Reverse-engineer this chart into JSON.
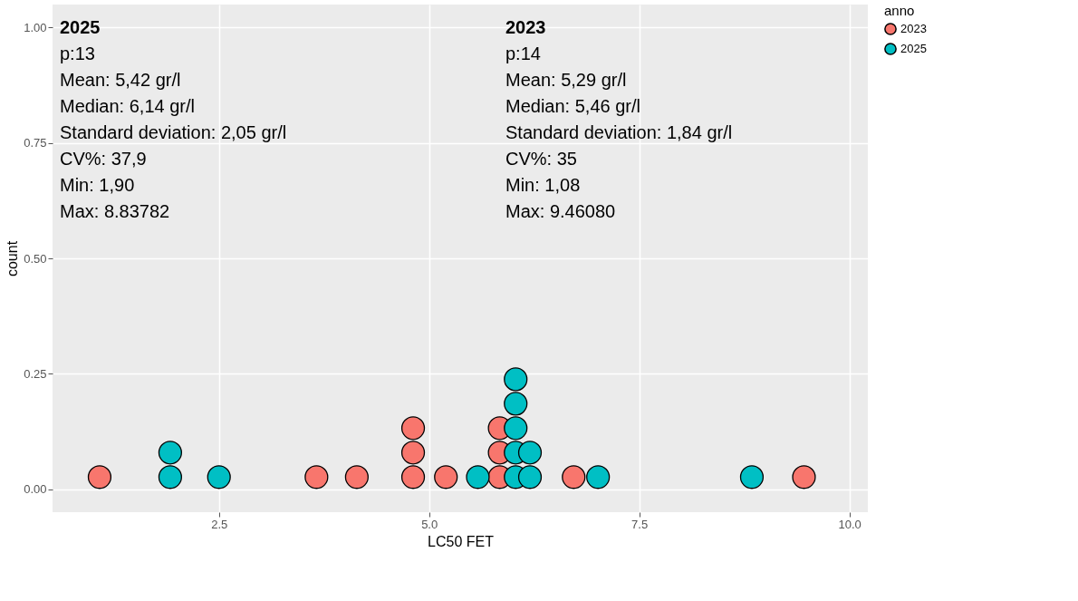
{
  "chart_data": {
    "type": "scatter",
    "xlabel": "LC50  FET",
    "ylabel": "count",
    "legend_title": "anno",
    "legend": "right",
    "grid": true,
    "marker": "circle",
    "xlim": [
      0.52,
      10.22
    ],
    "ylim": [
      -0.05,
      1.05
    ],
    "xticks": [
      2.5,
      {
        "value": 5,
        "label": "5.0"
      },
      7.5,
      {
        "value": 10,
        "label": "10.0"
      }
    ],
    "yticks": [
      {
        "value": 0,
        "label": "0.00"
      },
      0.25,
      {
        "value": 0.5,
        "label": "0.50"
      },
      0.75,
      {
        "value": 1,
        "label": "1.00"
      }
    ],
    "series": [
      {
        "name": "2023",
        "color": "#f8766d",
        "x": [
          1.08,
          3.66,
          4.14,
          4.81,
          4.81,
          4.81,
          5.2,
          5.84,
          5.84,
          5.84,
          6.72,
          9.46
        ],
        "values": [
          0.026,
          0.026,
          0.026,
          0.026,
          0.079,
          0.132,
          0.026,
          0.026,
          0.079,
          0.132,
          0.026,
          0.026
        ]
      },
      {
        "name": "2025",
        "color": "#00bfc4",
        "x": [
          1.92,
          1.92,
          2.5,
          5.58,
          6.03,
          6.03,
          6.03,
          6.03,
          6.03,
          6.2,
          6.2,
          7.01,
          8.84
        ],
        "values": [
          0.026,
          0.079,
          0.026,
          0.026,
          0.026,
          0.079,
          0.132,
          0.185,
          0.238,
          0.026,
          0.079,
          0.026,
          0.026
        ]
      }
    ],
    "annotations": [
      "2025\np:13\nMean: 5,42 gr/l\nMedian: 6,14 gr/l\nStandard deviation: 2,05 gr/l\nCV%: 37,9\nMin: 1,90\nMax: 8.83782",
      "2023\np:14\nMean: 5,29 gr/l\nMedian: 5,46 gr/l\nStandard deviation: 1,84 gr/l\nCV%: 35\nMin: 1,08\nMax: 9.46080"
    ]
  }
}
